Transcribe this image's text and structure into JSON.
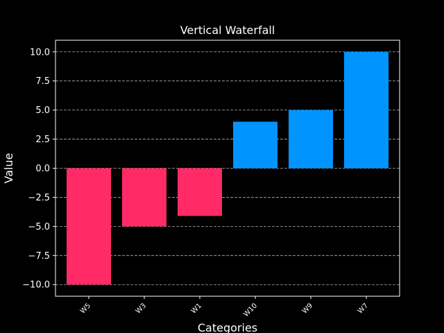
{
  "chart_data": {
    "type": "bar",
    "title": "Vertical Waterfall",
    "xlabel": "Categories",
    "ylabel": "Value",
    "categories": [
      "W5",
      "W3",
      "W1",
      "W10",
      "W9",
      "W7"
    ],
    "values": [
      -10,
      -5,
      -4.1,
      4,
      5,
      10
    ],
    "ylim": [
      -11,
      11
    ],
    "yticks": [
      "−10.0",
      "−7.5",
      "−5.0",
      "−2.5",
      "0.0",
      "2.5",
      "5.0",
      "7.5",
      "10.0"
    ],
    "ytick_values": [
      -10,
      -7.5,
      -5,
      -2.5,
      0,
      2.5,
      5,
      7.5,
      10
    ],
    "grid": "horizontal-dashed",
    "colors": {
      "negative": "#ff2a66",
      "positive": "#0094ff",
      "background": "#000000",
      "foreground": "#ffffff",
      "grid": "#b0b0b0"
    }
  }
}
